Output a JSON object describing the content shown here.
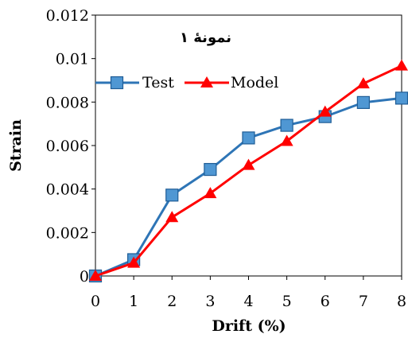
{
  "chart_data": {
    "type": "line",
    "annotation": "نمونۀ ۱",
    "xlabel": "Drift (%)",
    "ylabel": "Strain",
    "xlim": [
      0,
      8
    ],
    "ylim": [
      0,
      0.012
    ],
    "x_ticks": [
      "0",
      "1",
      "2",
      "3",
      "4",
      "5",
      "6",
      "7",
      "8"
    ],
    "y_ticks": [
      "0",
      "0.002",
      "0.004",
      "0.006",
      "0.008",
      "0.01",
      "0.012"
    ],
    "y_tick_values": [
      0,
      0.002,
      0.004,
      0.006,
      0.008,
      0.01,
      0.012
    ],
    "grid": false,
    "legend_position": "top-left",
    "x": [
      0,
      1,
      2,
      3,
      4,
      5,
      6,
      7,
      8
    ],
    "series": [
      {
        "name": "Test",
        "color": "#2e75b6",
        "marker": "square",
        "values": [
          0,
          0.00075,
          0.00372,
          0.0049,
          0.00635,
          0.00693,
          0.00733,
          0.00798,
          0.00818
        ]
      },
      {
        "name": "Model",
        "color": "#ff0000",
        "marker": "triangle",
        "values": [
          0,
          0.0006,
          0.0027,
          0.0038,
          0.0051,
          0.0062,
          0.00755,
          0.00885,
          0.00967
        ]
      }
    ]
  }
}
